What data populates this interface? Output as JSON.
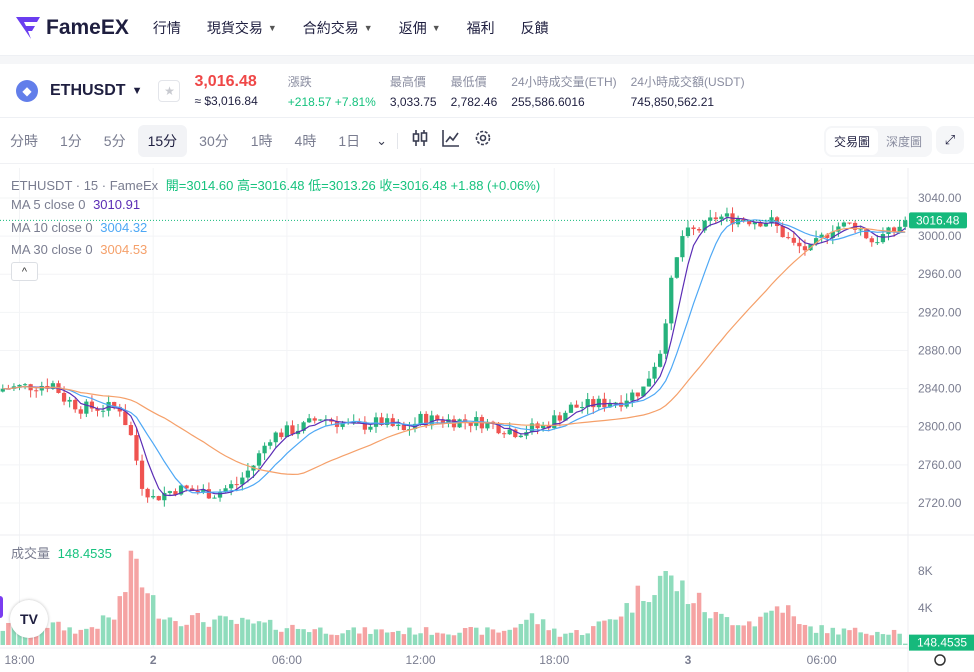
{
  "nav": {
    "brand": "FameEX",
    "items": [
      {
        "label": "行情"
      },
      {
        "label": "現貨交易",
        "dropdown": true
      },
      {
        "label": "合約交易",
        "dropdown": true
      },
      {
        "label": "返佣",
        "dropdown": true
      },
      {
        "label": "福利"
      },
      {
        "label": "反饋"
      }
    ]
  },
  "ticker": {
    "symbol": "ETHUSDT",
    "last_price": "3,016.48",
    "usd_price": "≈ $3,016.84",
    "stats": [
      {
        "label": "漲跌",
        "value": "+218.57 +7.81%",
        "green": true
      },
      {
        "label": "最高價",
        "value": "3,033.75"
      },
      {
        "label": "最低價",
        "value": "2,782.46"
      },
      {
        "label": "24小時成交量(ETH)",
        "value": "255,586.6016"
      },
      {
        "label": "24小時成交額(USDT)",
        "value": "745,850,562.21"
      }
    ]
  },
  "toolbar": {
    "timeframes": [
      "分時",
      "1分",
      "5分",
      "15分",
      "30分",
      "1時",
      "4時",
      "1日"
    ],
    "active": "15分",
    "views": [
      "交易圖",
      "深度圖"
    ],
    "active_view": "交易圖"
  },
  "legend": {
    "title": "ETHUSDT · 15 · FameEx",
    "ohlc": "開=3014.60 高=3016.48 低=3013.26 收=3016.48 +1.88 (+0.06%)",
    "ma": [
      {
        "label": "MA 5 close 0",
        "value": "3010.91",
        "color": "#5b2db5",
        "period": 5
      },
      {
        "label": "MA 10 close 0",
        "value": "3004.32",
        "color": "#4ea8f5",
        "period": 10
      },
      {
        "label": "MA 30 close 0",
        "value": "3004.53",
        "color": "#f5a06a",
        "period": 30
      }
    ],
    "volume_label": "成交量",
    "volume_value": "148.4535"
  },
  "colors": {
    "up": "#26b27c",
    "down": "#ef5350",
    "accent": "#16b97c"
  },
  "chart_data": {
    "type": "candlestick",
    "interval": "15m",
    "price_ticks": [
      "3040.00",
      "3000.00",
      "2960.00",
      "2920.00",
      "2880.00",
      "2840.00",
      "2800.00",
      "2760.00",
      "2720.00"
    ],
    "price_tick_values": [
      3040,
      3000,
      2960,
      2920,
      2880,
      2840,
      2800,
      2760,
      2720
    ],
    "last_price_label": "3016.48",
    "last_price": 3016.48,
    "volume_ticks": [
      {
        "label": "8K",
        "value": 8000
      },
      {
        "label": "4K",
        "value": 4000
      }
    ],
    "last_volume_label": "148.4535",
    "time_labels": [
      {
        "label": "18:00",
        "index": 3
      },
      {
        "label": "2",
        "index": 27
      },
      {
        "label": "06:00",
        "index": 51
      },
      {
        "label": "12:00",
        "index": 75
      },
      {
        "label": "18:00",
        "index": 99
      },
      {
        "label": "3",
        "index": 123
      },
      {
        "label": "06:00",
        "index": 147
      }
    ],
    "candle_count": 163,
    "close_keypoints": [
      [
        0,
        2840
      ],
      [
        9,
        2845
      ],
      [
        11,
        2830
      ],
      [
        14,
        2820
      ],
      [
        21,
        2820
      ],
      [
        23,
        2790
      ],
      [
        25,
        2740
      ],
      [
        27,
        2725
      ],
      [
        31,
        2735
      ],
      [
        38,
        2730
      ],
      [
        42,
        2740
      ],
      [
        45,
        2760
      ],
      [
        48,
        2790
      ],
      [
        54,
        2800
      ],
      [
        57,
        2810
      ],
      [
        63,
        2800
      ],
      [
        68,
        2805
      ],
      [
        72,
        2795
      ],
      [
        75,
        2808
      ],
      [
        86,
        2805
      ],
      [
        92,
        2795
      ],
      [
        97,
        2800
      ],
      [
        102,
        2820
      ],
      [
        108,
        2825
      ],
      [
        111,
        2828
      ],
      [
        115,
        2840
      ],
      [
        118,
        2880
      ],
      [
        120,
        2950
      ],
      [
        122,
        3000
      ],
      [
        124,
        3005
      ],
      [
        126,
        3010
      ],
      [
        128,
        3020
      ],
      [
        133,
        3018
      ],
      [
        138,
        3015
      ],
      [
        142,
        2990
      ],
      [
        145,
        2985
      ],
      [
        149,
        3010
      ],
      [
        153,
        3012
      ],
      [
        156,
        2995
      ],
      [
        160,
        3005
      ],
      [
        162,
        3016.48
      ]
    ],
    "volume_keypoints": [
      [
        0,
        1800
      ],
      [
        5,
        2500
      ],
      [
        10,
        2000
      ],
      [
        14,
        1500
      ],
      [
        20,
        3000
      ],
      [
        24,
        9500
      ],
      [
        26,
        5000
      ],
      [
        30,
        3000
      ],
      [
        40,
        2500
      ],
      [
        50,
        2000
      ],
      [
        60,
        1500
      ],
      [
        70,
        1500
      ],
      [
        80,
        1500
      ],
      [
        90,
        1500
      ],
      [
        95,
        3000
      ],
      [
        100,
        1200
      ],
      [
        105,
        1500
      ],
      [
        108,
        2500
      ],
      [
        112,
        4000
      ],
      [
        116,
        6500
      ],
      [
        118,
        7500
      ],
      [
        121,
        6500
      ],
      [
        124,
        5000
      ],
      [
        128,
        3000
      ],
      [
        135,
        2500
      ],
      [
        140,
        4500
      ],
      [
        143,
        2000
      ],
      [
        150,
        1500
      ],
      [
        161,
        1500
      ],
      [
        162,
        148
      ]
    ]
  }
}
